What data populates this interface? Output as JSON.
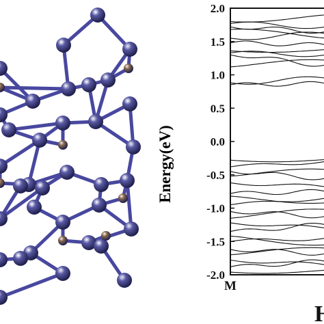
{
  "crystal": {
    "framework_color": "#5a5aa6",
    "dopant_color": "#8a6a4e",
    "bond_color": "#4848a0"
  },
  "chart_data": {
    "type": "line",
    "title": "",
    "xlabel": "",
    "ylabel": "Energy(eV)",
    "ylim": [
      -2.0,
      2.0
    ],
    "yticks": [
      2.0,
      1.5,
      1.0,
      0.5,
      0.0,
      -0.5,
      -1.0,
      -1.5,
      -2.0
    ],
    "ytick_labels": [
      "2.0",
      "1.5",
      "1.0",
      "0.5",
      "0.0",
      "-0.5",
      "-1.0",
      "-1.5",
      "-2.0"
    ],
    "kpath_labels": [
      "M",
      "H"
    ],
    "grid": false,
    "line_color": "#111111",
    "bands": [
      {
        "left": 1.8,
        "right": 1.9
      },
      {
        "left": 1.77,
        "right": 1.72
      },
      {
        "left": 1.72,
        "right": 1.65
      },
      {
        "left": 1.68,
        "right": 1.55
      },
      {
        "left": 1.55,
        "right": 1.62
      },
      {
        "left": 1.48,
        "right": 1.45
      },
      {
        "left": 1.36,
        "right": 1.38
      },
      {
        "left": 1.33,
        "right": 1.3
      },
      {
        "left": 1.3,
        "right": 1.15
      },
      {
        "left": 1.12,
        "right": 1.22
      },
      {
        "left": 0.88,
        "right": 0.95
      },
      {
        "left": 0.85,
        "right": 0.87
      },
      {
        "left": -0.28,
        "right": -0.27
      },
      {
        "left": -0.38,
        "right": -0.3
      },
      {
        "left": -0.45,
        "right": -0.55
      },
      {
        "left": -0.52,
        "right": -0.42
      },
      {
        "left": -0.62,
        "right": -0.68
      },
      {
        "left": -0.78,
        "right": -0.75
      },
      {
        "left": -0.82,
        "right": -0.92
      },
      {
        "left": -0.95,
        "right": -0.85
      },
      {
        "left": -1.05,
        "right": -1.12
      },
      {
        "left": -1.15,
        "right": -1.02
      },
      {
        "left": -1.22,
        "right": -1.3
      },
      {
        "left": -1.35,
        "right": -1.25
      },
      {
        "left": -1.42,
        "right": -1.55
      },
      {
        "left": -1.5,
        "right": -1.45
      },
      {
        "left": -1.62,
        "right": -1.68
      },
      {
        "left": -1.7,
        "right": -1.6
      },
      {
        "left": -1.78,
        "right": -1.85
      },
      {
        "left": -1.88,
        "right": -1.8
      },
      {
        "left": -1.96,
        "right": -1.93
      }
    ]
  }
}
